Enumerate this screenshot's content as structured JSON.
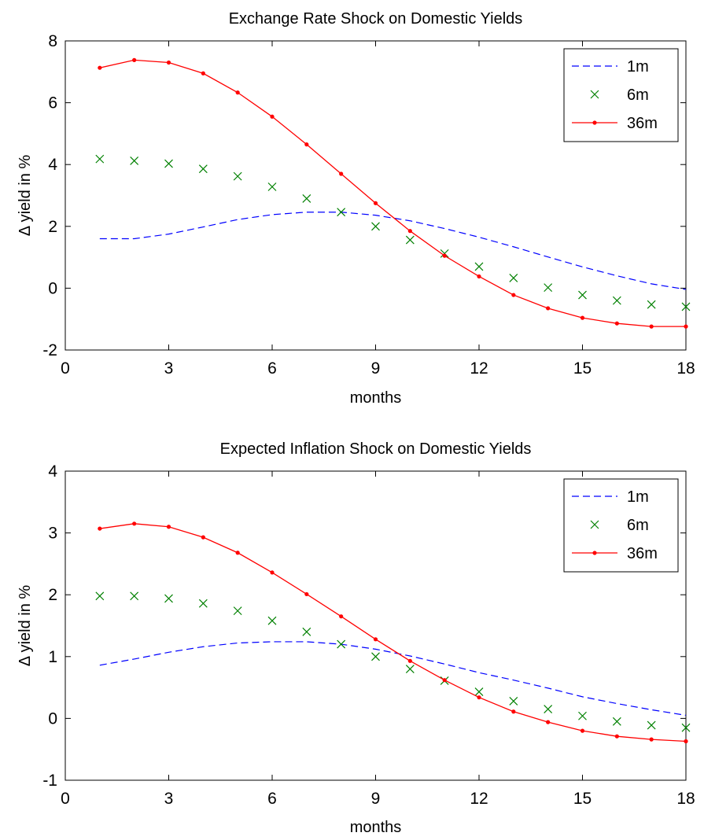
{
  "colors": {
    "s1m": "#0000ff",
    "s6m": "#008000",
    "s36m": "#ff0000",
    "axis": "#000000",
    "bg": "#ffffff"
  },
  "chart_data": [
    {
      "type": "line",
      "title": "Exchange Rate Shock on Domestic Yields",
      "xlabel": "months",
      "ylabel": "Δ yield in %",
      "xlim": [
        0,
        18
      ],
      "ylim": [
        -2,
        8
      ],
      "xticks": [
        0,
        3,
        6,
        9,
        12,
        15,
        18
      ],
      "yticks": [
        -2,
        0,
        2,
        4,
        6,
        8
      ],
      "grid": false,
      "legend_position": "top-right",
      "x": [
        1,
        2,
        3,
        4,
        5,
        6,
        7,
        8,
        9,
        10,
        11,
        12,
        13,
        14,
        15,
        16,
        17,
        18
      ],
      "series": [
        {
          "name": "1m",
          "style": "dashed",
          "color": "#0000ff",
          "values": [
            1.6,
            1.6,
            1.75,
            1.98,
            2.22,
            2.38,
            2.46,
            2.46,
            2.36,
            2.18,
            1.93,
            1.65,
            1.34,
            1.01,
            0.69,
            0.4,
            0.14,
            -0.04
          ]
        },
        {
          "name": "6m",
          "style": "marker-x",
          "color": "#008000",
          "values": [
            4.18,
            4.12,
            4.03,
            3.86,
            3.62,
            3.28,
            2.9,
            2.46,
            2.0,
            1.56,
            1.12,
            0.7,
            0.33,
            0.02,
            -0.22,
            -0.4,
            -0.53,
            -0.6
          ]
        },
        {
          "name": "36m",
          "style": "line-dot",
          "color": "#ff0000",
          "values": [
            7.13,
            7.38,
            7.3,
            6.95,
            6.33,
            5.55,
            4.65,
            3.7,
            2.75,
            1.85,
            1.05,
            0.38,
            -0.22,
            -0.65,
            -0.96,
            -1.14,
            -1.24,
            -1.24
          ]
        }
      ]
    },
    {
      "type": "line",
      "title": "Expected Inflation Shock on Domestic Yields",
      "xlabel": "months",
      "ylabel": "Δ yield in %",
      "xlim": [
        0,
        18
      ],
      "ylim": [
        -1,
        4
      ],
      "xticks": [
        0,
        3,
        6,
        9,
        12,
        15,
        18
      ],
      "yticks": [
        -1,
        0,
        1,
        2,
        3,
        4
      ],
      "grid": false,
      "legend_position": "top-right",
      "x": [
        1,
        2,
        3,
        4,
        5,
        6,
        7,
        8,
        9,
        10,
        11,
        12,
        13,
        14,
        15,
        16,
        17,
        18
      ],
      "series": [
        {
          "name": "1m",
          "style": "dashed",
          "color": "#0000ff",
          "values": [
            0.86,
            0.96,
            1.07,
            1.16,
            1.22,
            1.24,
            1.24,
            1.2,
            1.12,
            1.01,
            0.88,
            0.74,
            0.62,
            0.49,
            0.35,
            0.24,
            0.14,
            0.05
          ]
        },
        {
          "name": "6m",
          "style": "marker-x",
          "color": "#008000",
          "values": [
            1.98,
            1.98,
            1.94,
            1.86,
            1.74,
            1.58,
            1.4,
            1.2,
            1.0,
            0.8,
            0.61,
            0.43,
            0.28,
            0.15,
            0.04,
            -0.05,
            -0.11,
            -0.15
          ]
        },
        {
          "name": "36m",
          "style": "line-dot",
          "color": "#ff0000",
          "values": [
            3.07,
            3.15,
            3.1,
            2.93,
            2.68,
            2.36,
            2.01,
            1.65,
            1.28,
            0.93,
            0.62,
            0.34,
            0.11,
            -0.06,
            -0.2,
            -0.29,
            -0.34,
            -0.37
          ]
        }
      ]
    }
  ]
}
